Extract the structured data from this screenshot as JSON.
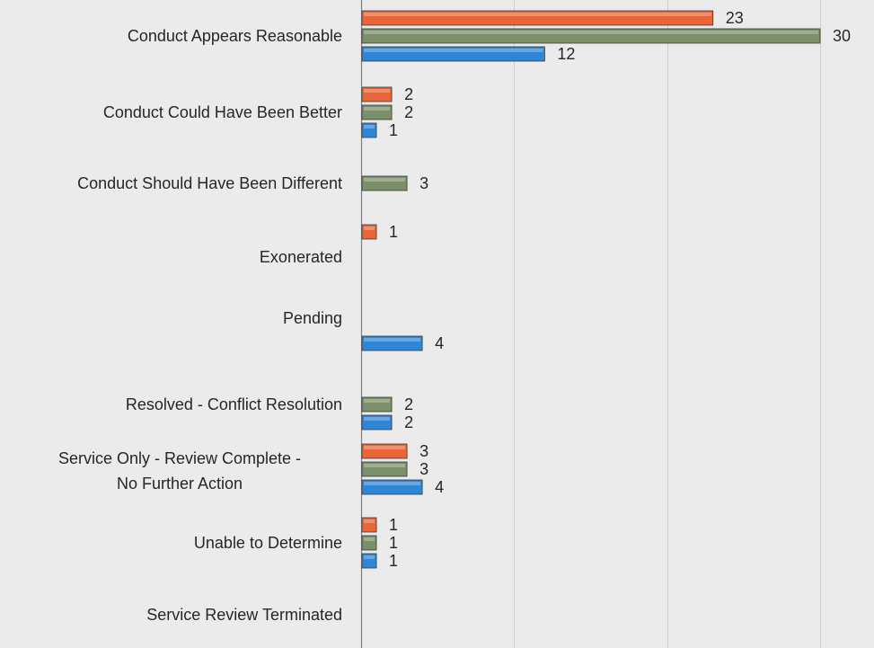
{
  "chart_data": {
    "type": "bar",
    "orientation": "horizontal",
    "categories": [
      "Conduct Appears Reasonable",
      "Conduct Could Have Been Better",
      "Conduct Should Have Been Different",
      "Exonerated",
      "Pending",
      "Resolved - Conflict Resolution",
      "Service Only - Review Complete - No Further Action",
      "Unable to Determine",
      "Service Review Terminated"
    ],
    "series": [
      {
        "color": "#e8653a",
        "values": [
          23,
          2,
          null,
          1,
          null,
          null,
          3,
          1,
          null
        ]
      },
      {
        "color": "#7a8f6a",
        "values": [
          30,
          2,
          3,
          null,
          null,
          2,
          3,
          1,
          null
        ]
      },
      {
        "color": "#2f86d4",
        "values": [
          12,
          1,
          null,
          null,
          4,
          2,
          4,
          1,
          null
        ]
      }
    ],
    "xlim": [
      0,
      30
    ],
    "grid": true,
    "title": "",
    "xlabel": "",
    "ylabel": ""
  }
}
